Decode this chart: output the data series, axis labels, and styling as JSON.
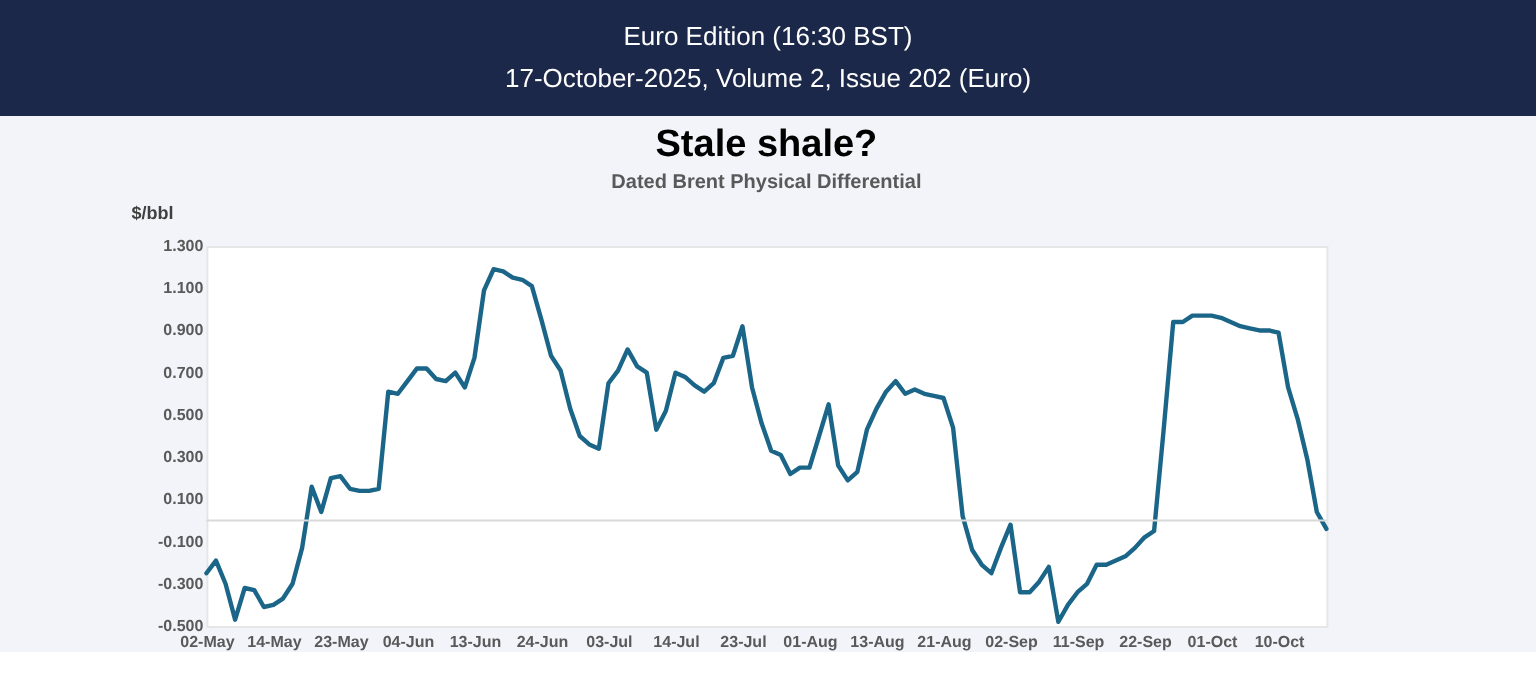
{
  "chart_data": {
    "type": "line",
    "title": "Stale shale?",
    "subtitle": "Dated Brent Physical Differential",
    "ylabel": "$/bbl",
    "annotations": [
      "Euro Edition (16:30 BST)",
      "17-October-2025, Volume 2, Issue 202 (Euro)"
    ],
    "categories": [
      "02-May",
      null,
      null,
      null,
      null,
      null,
      null,
      "14-May",
      null,
      null,
      null,
      null,
      null,
      null,
      "23-May",
      null,
      null,
      null,
      null,
      null,
      null,
      "04-Jun",
      null,
      null,
      null,
      null,
      null,
      null,
      "13-Jun",
      null,
      null,
      null,
      null,
      null,
      null,
      "24-Jun",
      null,
      null,
      null,
      null,
      null,
      null,
      "03-Jul",
      null,
      null,
      null,
      null,
      null,
      null,
      "14-Jul",
      null,
      null,
      null,
      null,
      null,
      null,
      "23-Jul",
      null,
      null,
      null,
      null,
      null,
      null,
      "01-Aug",
      null,
      null,
      null,
      null,
      null,
      null,
      "13-Aug",
      null,
      null,
      null,
      null,
      null,
      null,
      "21-Aug",
      null,
      null,
      null,
      null,
      null,
      null,
      "02-Sep",
      null,
      null,
      null,
      null,
      null,
      null,
      "11-Sep",
      null,
      null,
      null,
      null,
      null,
      null,
      "22-Sep",
      null,
      null,
      null,
      null,
      null,
      null,
      "01-Oct",
      null,
      null,
      null,
      null,
      null,
      null,
      "10-Oct",
      null,
      null,
      null,
      null,
      null
    ],
    "series": [
      {
        "color": "#1b6688",
        "values": [
          -0.25,
          -0.19,
          -0.3,
          -0.47,
          -0.32,
          -0.33,
          -0.41,
          -0.4,
          -0.37,
          -0.3,
          -0.13,
          0.16,
          0.04,
          0.2,
          0.21,
          0.15,
          0.14,
          0.14,
          0.15,
          0.61,
          0.6,
          0.66,
          0.72,
          0.72,
          0.67,
          0.66,
          0.7,
          0.63,
          0.77,
          1.09,
          1.19,
          1.18,
          1.15,
          1.14,
          1.11,
          0.95,
          0.78,
          0.71,
          0.53,
          0.4,
          0.36,
          0.34,
          0.65,
          0.71,
          0.81,
          0.73,
          0.7,
          0.43,
          0.52,
          0.7,
          0.68,
          0.64,
          0.61,
          0.65,
          0.77,
          0.78,
          0.92,
          0.63,
          0.46,
          0.33,
          0.31,
          0.22,
          0.25,
          0.25,
          0.4,
          0.55,
          0.26,
          0.19,
          0.23,
          0.43,
          0.53,
          0.61,
          0.66,
          0.6,
          0.62,
          0.6,
          0.59,
          0.58,
          0.44,
          0.02,
          -0.14,
          -0.21,
          -0.25,
          -0.13,
          -0.02,
          -0.34,
          -0.34,
          -0.29,
          -0.22,
          -0.48,
          -0.4,
          -0.34,
          -0.3,
          -0.21,
          -0.21,
          -0.19,
          -0.17,
          -0.13,
          -0.08,
          -0.05,
          0.43,
          0.94,
          0.94,
          0.97,
          0.97,
          0.97,
          0.96,
          0.94,
          0.92,
          0.91,
          0.9,
          0.9,
          0.89,
          0.63,
          0.48,
          0.29,
          0.04,
          -0.04
        ]
      }
    ],
    "ylim": [
      -0.5,
      1.3
    ],
    "yticks": [
      {
        "value": 1.3,
        "label": "1.300"
      },
      {
        "value": 1.1,
        "label": "1.100"
      },
      {
        "value": 0.9,
        "label": "0.900"
      },
      {
        "value": 0.7,
        "label": "0.700"
      },
      {
        "value": 0.5,
        "label": "0.500"
      },
      {
        "value": 0.3,
        "label": "0.300"
      },
      {
        "value": 0.1,
        "label": "0.100"
      },
      {
        "value": -0.1,
        "label": "-0.100"
      },
      {
        "value": -0.3,
        "label": "-0.300"
      },
      {
        "value": -0.5,
        "label": "-0.500"
      }
    ],
    "ref_lines": [
      {
        "axis": "y",
        "value": 0,
        "color": "#d9d9d9"
      }
    ],
    "grid": false,
    "marker": "none",
    "line_style": "solid"
  }
}
